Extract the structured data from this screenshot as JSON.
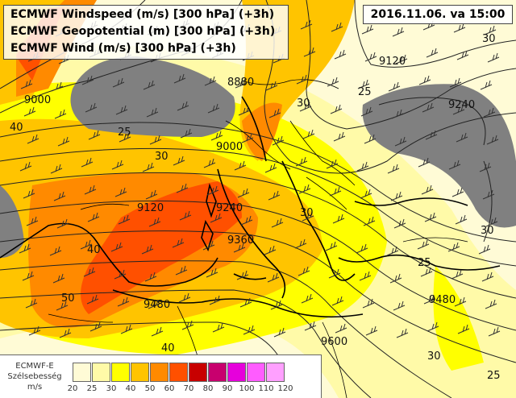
{
  "titles": [
    "ECMWF Windspeed (m/s) [300 hPa] (+3h)",
    "ECMWF Geopotential (m) [300 hPa] (+3h)",
    "ECMWF Wind (m/s) [300 hPa] (+3h)"
  ],
  "datetime": "2016.11.06. va 15:00",
  "legend": {
    "name_lines": [
      "ECMWF-E",
      "Szélsebesség",
      "m/s"
    ],
    "ticks": [
      "20",
      "25",
      "30",
      "40",
      "50",
      "60",
      "70",
      "80",
      "90",
      "100",
      "110",
      "120"
    ],
    "colors": [
      "#fffbd6",
      "#fffaa8",
      "#ffff00",
      "#ffc400",
      "#ff8a00",
      "#ff5000",
      "#c80000",
      "#c8006e",
      "#e600dc",
      "#ff5cff",
      "#ffa0ff",
      "#ffd4ff"
    ]
  },
  "geopotential_labels": [
    "8880",
    "9000",
    "9000",
    "9120",
    "9120",
    "9240",
    "9240",
    "9360",
    "9480",
    "9480",
    "9600"
  ],
  "windspeed_labels": [
    "25",
    "25",
    "25",
    "30",
    "30",
    "30",
    "30",
    "30",
    "40",
    "40",
    "40",
    "50",
    "25",
    "30"
  ]
}
